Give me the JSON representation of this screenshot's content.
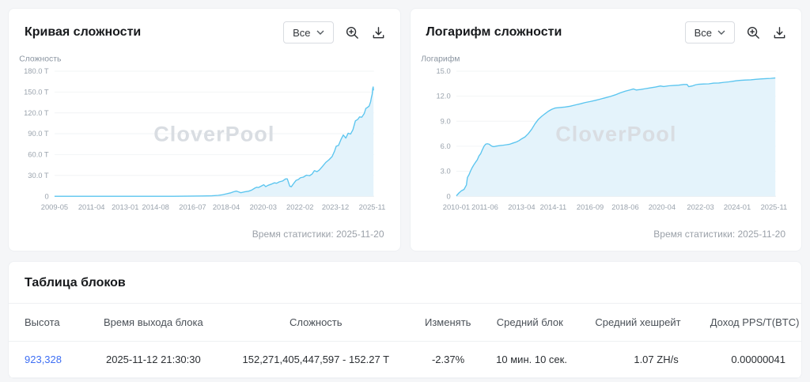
{
  "cards": [
    {
      "title": "Кривая сложности",
      "range_value": "Все",
      "stat_time": "Время статистики: 2025-11-20"
    },
    {
      "title": "Логарифм сложности",
      "range_value": "Все",
      "stat_time": "Время статистики: 2025-11-20"
    }
  ],
  "chart_data": [
    {
      "type": "area",
      "title": "Кривая сложности",
      "ylabel": "Сложность",
      "watermark": "CloverPool",
      "unit": "T",
      "ylim": [
        0,
        180
      ],
      "xlim": [
        2009.33,
        2025.92
      ],
      "grid": true,
      "yticks": [
        {
          "v": 0,
          "label": "0"
        },
        {
          "v": 30,
          "label": "30.0 T"
        },
        {
          "v": 60,
          "label": "60.0 T"
        },
        {
          "v": 90,
          "label": "90.0 T"
        },
        {
          "v": 120,
          "label": "120.0 T"
        },
        {
          "v": 150,
          "label": "150.0 T"
        },
        {
          "v": 180,
          "label": "180.0 T"
        }
      ],
      "xticks": [
        {
          "t": 2009.33,
          "label": "2009-05"
        },
        {
          "t": 2011.25,
          "label": "2011-04"
        },
        {
          "t": 2013.0,
          "label": "2013-01"
        },
        {
          "t": 2014.58,
          "label": "2014-08"
        },
        {
          "t": 2016.5,
          "label": "2016-07"
        },
        {
          "t": 2018.25,
          "label": "2018-04"
        },
        {
          "t": 2020.17,
          "label": "2020-03"
        },
        {
          "t": 2022.08,
          "label": "2022-02"
        },
        {
          "t": 2023.92,
          "label": "2023-12"
        },
        {
          "t": 2025.83,
          "label": "2025-11"
        }
      ],
      "points": [
        [
          2009.33,
          0
        ],
        [
          2010.0,
          0
        ],
        [
          2010.5,
          0
        ],
        [
          2011.0,
          0
        ],
        [
          2011.5,
          0
        ],
        [
          2012.0,
          0
        ],
        [
          2013.0,
          0
        ],
        [
          2013.5,
          0
        ],
        [
          2014.0,
          0.001
        ],
        [
          2014.5,
          0.01
        ],
        [
          2015.0,
          0.045
        ],
        [
          2015.5,
          0.05
        ],
        [
          2016.0,
          0.1
        ],
        [
          2016.5,
          0.2
        ],
        [
          2017.0,
          0.39
        ],
        [
          2017.5,
          0.71
        ],
        [
          2017.83,
          1.3
        ],
        [
          2018.0,
          1.93
        ],
        [
          2018.25,
          3.46
        ],
        [
          2018.5,
          5.1
        ],
        [
          2018.63,
          6.4
        ],
        [
          2018.78,
          7.45
        ],
        [
          2018.92,
          6.0
        ],
        [
          2019.0,
          5.1
        ],
        [
          2019.17,
          6.1
        ],
        [
          2019.42,
          7.4
        ],
        [
          2019.58,
          9.0
        ],
        [
          2019.75,
          12.0
        ],
        [
          2019.83,
          13.0
        ],
        [
          2019.92,
          12.6
        ],
        [
          2020.08,
          14.8
        ],
        [
          2020.2,
          16.6
        ],
        [
          2020.3,
          13.9
        ],
        [
          2020.42,
          15.8
        ],
        [
          2020.58,
          17.3
        ],
        [
          2020.75,
          19.3
        ],
        [
          2020.87,
          18.7
        ],
        [
          2021.0,
          20.6
        ],
        [
          2021.17,
          21.9
        ],
        [
          2021.33,
          25.0
        ],
        [
          2021.42,
          25.0
        ],
        [
          2021.55,
          14.4
        ],
        [
          2021.63,
          13.7
        ],
        [
          2021.75,
          18.4
        ],
        [
          2021.87,
          22.7
        ],
        [
          2022.0,
          24.2
        ],
        [
          2022.1,
          26.7
        ],
        [
          2022.25,
          27.5
        ],
        [
          2022.42,
          30.3
        ],
        [
          2022.58,
          29.6
        ],
        [
          2022.71,
          32.0
        ],
        [
          2022.83,
          36.8
        ],
        [
          2022.96,
          35.4
        ],
        [
          2023.08,
          37.6
        ],
        [
          2023.25,
          43.1
        ],
        [
          2023.42,
          48.7
        ],
        [
          2023.58,
          52.3
        ],
        [
          2023.75,
          57.1
        ],
        [
          2023.87,
          64.7
        ],
        [
          2023.96,
          72.0
        ],
        [
          2024.08,
          73.2
        ],
        [
          2024.21,
          81.7
        ],
        [
          2024.33,
          88.1
        ],
        [
          2024.46,
          83.7
        ],
        [
          2024.58,
          90.7
        ],
        [
          2024.71,
          89.5
        ],
        [
          2024.83,
          95.7
        ],
        [
          2024.96,
          108.5
        ],
        [
          2025.08,
          110.6
        ],
        [
          2025.17,
          114.2
        ],
        [
          2025.29,
          113.8
        ],
        [
          2025.42,
          119.1
        ],
        [
          2025.5,
          126.4
        ],
        [
          2025.58,
          127.6
        ],
        [
          2025.67,
          129.7
        ],
        [
          2025.75,
          136.0
        ],
        [
          2025.79,
          142.3
        ],
        [
          2025.83,
          146.7
        ],
        [
          2025.86,
          155.0
        ],
        [
          2025.88,
          157.3
        ],
        [
          2025.9,
          152.3
        ]
      ]
    },
    {
      "type": "area",
      "title": "Логарифм сложности",
      "ylabel": "Логарифм",
      "watermark": "CloverPool",
      "unit": "",
      "ylim": [
        0,
        15
      ],
      "xlim": [
        2010.0,
        2025.92
      ],
      "grid": true,
      "yticks": [
        {
          "v": 0,
          "label": "0"
        },
        {
          "v": 3,
          "label": "3.0"
        },
        {
          "v": 6,
          "label": "6.0"
        },
        {
          "v": 9,
          "label": "9.0"
        },
        {
          "v": 12,
          "label": "12.0"
        },
        {
          "v": 15,
          "label": "15.0"
        }
      ],
      "xticks": [
        {
          "t": 2010.0,
          "label": "2010-01"
        },
        {
          "t": 2011.42,
          "label": "2011-06"
        },
        {
          "t": 2013.25,
          "label": "2013-04"
        },
        {
          "t": 2014.83,
          "label": "2014-11"
        },
        {
          "t": 2016.67,
          "label": "2016-09"
        },
        {
          "t": 2018.42,
          "label": "2018-06"
        },
        {
          "t": 2020.25,
          "label": "2020-04"
        },
        {
          "t": 2022.17,
          "label": "2022-03"
        },
        {
          "t": 2024.0,
          "label": "2024-01"
        },
        {
          "t": 2025.83,
          "label": "2025-11"
        }
      ],
      "points": [
        [
          2010.0,
          0.05
        ],
        [
          2010.13,
          0.4
        ],
        [
          2010.25,
          0.65
        ],
        [
          2010.38,
          0.82
        ],
        [
          2010.5,
          1.35
        ],
        [
          2010.55,
          2.25
        ],
        [
          2010.63,
          2.6
        ],
        [
          2010.71,
          3.05
        ],
        [
          2010.79,
          3.45
        ],
        [
          2010.88,
          3.8
        ],
        [
          2010.96,
          4.1
        ],
        [
          2011.04,
          4.35
        ],
        [
          2011.13,
          4.85
        ],
        [
          2011.21,
          5.1
        ],
        [
          2011.29,
          5.55
        ],
        [
          2011.38,
          6.0
        ],
        [
          2011.46,
          6.25
        ],
        [
          2011.54,
          6.3
        ],
        [
          2011.63,
          6.25
        ],
        [
          2011.71,
          6.1
        ],
        [
          2011.79,
          5.98
        ],
        [
          2011.88,
          5.95
        ],
        [
          2012.0,
          6.02
        ],
        [
          2012.17,
          6.08
        ],
        [
          2012.33,
          6.12
        ],
        [
          2012.5,
          6.18
        ],
        [
          2012.67,
          6.25
        ],
        [
          2012.83,
          6.38
        ],
        [
          2013.0,
          6.52
        ],
        [
          2013.13,
          6.68
        ],
        [
          2013.25,
          6.88
        ],
        [
          2013.42,
          7.12
        ],
        [
          2013.58,
          7.5
        ],
        [
          2013.75,
          8.02
        ],
        [
          2013.92,
          8.68
        ],
        [
          2014.08,
          9.2
        ],
        [
          2014.25,
          9.58
        ],
        [
          2014.42,
          9.9
        ],
        [
          2014.58,
          10.18
        ],
        [
          2014.75,
          10.42
        ],
        [
          2014.92,
          10.58
        ],
        [
          2015.17,
          10.64
        ],
        [
          2015.42,
          10.7
        ],
        [
          2015.67,
          10.8
        ],
        [
          2015.92,
          10.94
        ],
        [
          2016.17,
          11.08
        ],
        [
          2016.42,
          11.24
        ],
        [
          2016.67,
          11.36
        ],
        [
          2016.92,
          11.5
        ],
        [
          2017.17,
          11.64
        ],
        [
          2017.42,
          11.8
        ],
        [
          2017.67,
          11.96
        ],
        [
          2017.92,
          12.16
        ],
        [
          2018.17,
          12.4
        ],
        [
          2018.42,
          12.6
        ],
        [
          2018.67,
          12.76
        ],
        [
          2018.83,
          12.87
        ],
        [
          2018.96,
          12.74
        ],
        [
          2019.17,
          12.8
        ],
        [
          2019.42,
          12.9
        ],
        [
          2019.67,
          13.0
        ],
        [
          2019.92,
          13.1
        ],
        [
          2020.17,
          13.22
        ],
        [
          2020.33,
          13.15
        ],
        [
          2020.58,
          13.24
        ],
        [
          2020.83,
          13.28
        ],
        [
          2021.08,
          13.32
        ],
        [
          2021.33,
          13.4
        ],
        [
          2021.5,
          13.4
        ],
        [
          2021.58,
          13.14
        ],
        [
          2021.75,
          13.22
        ],
        [
          2021.92,
          13.36
        ],
        [
          2022.08,
          13.43
        ],
        [
          2022.33,
          13.46
        ],
        [
          2022.58,
          13.48
        ],
        [
          2022.83,
          13.57
        ],
        [
          2023.08,
          13.58
        ],
        [
          2023.33,
          13.66
        ],
        [
          2023.58,
          13.72
        ],
        [
          2023.83,
          13.81
        ],
        [
          2023.96,
          13.86
        ],
        [
          2024.17,
          13.9
        ],
        [
          2024.42,
          13.93
        ],
        [
          2024.67,
          13.96
        ],
        [
          2024.92,
          14.02
        ],
        [
          2025.17,
          14.06
        ],
        [
          2025.42,
          14.1
        ],
        [
          2025.67,
          14.13
        ],
        [
          2025.9,
          14.18
        ]
      ]
    }
  ],
  "blocks_table": {
    "title": "Таблица блоков",
    "columns": [
      {
        "label": "Высота",
        "align": "left"
      },
      {
        "label": "Время выхода блока",
        "align": "center"
      },
      {
        "label": "Сложность",
        "align": "center"
      },
      {
        "label": "Изменять",
        "align": "right"
      },
      {
        "label": "Средний блок",
        "align": "center"
      },
      {
        "label": "Средний хешрейт",
        "align": "right"
      },
      {
        "label": "Доход PPS/T(BTC)",
        "align": "right"
      }
    ],
    "rows": [
      {
        "height": "923,328",
        "time": "2025-11-12 21:30:30",
        "difficulty": "152,271,405,447,597 - 152.27 T",
        "change": "-2.37%",
        "change_negative": true,
        "avg_block": "10 мин. 10 сек.",
        "avg_hashrate": "1.07 ZH/s",
        "income": "0.00000041"
      }
    ]
  },
  "icons": {
    "chevron_down": "chevron-down-icon",
    "zoom_in": "zoom-in-icon",
    "download": "download-icon"
  },
  "colors": {
    "page_background": "#f5f6f8",
    "chart_line": "#5bc5ef",
    "chart_fill": "#e4f3fb",
    "link_blue": "#3e6ff4",
    "negative_red": "#e64242",
    "watermark_gray": "#d9dde2"
  }
}
